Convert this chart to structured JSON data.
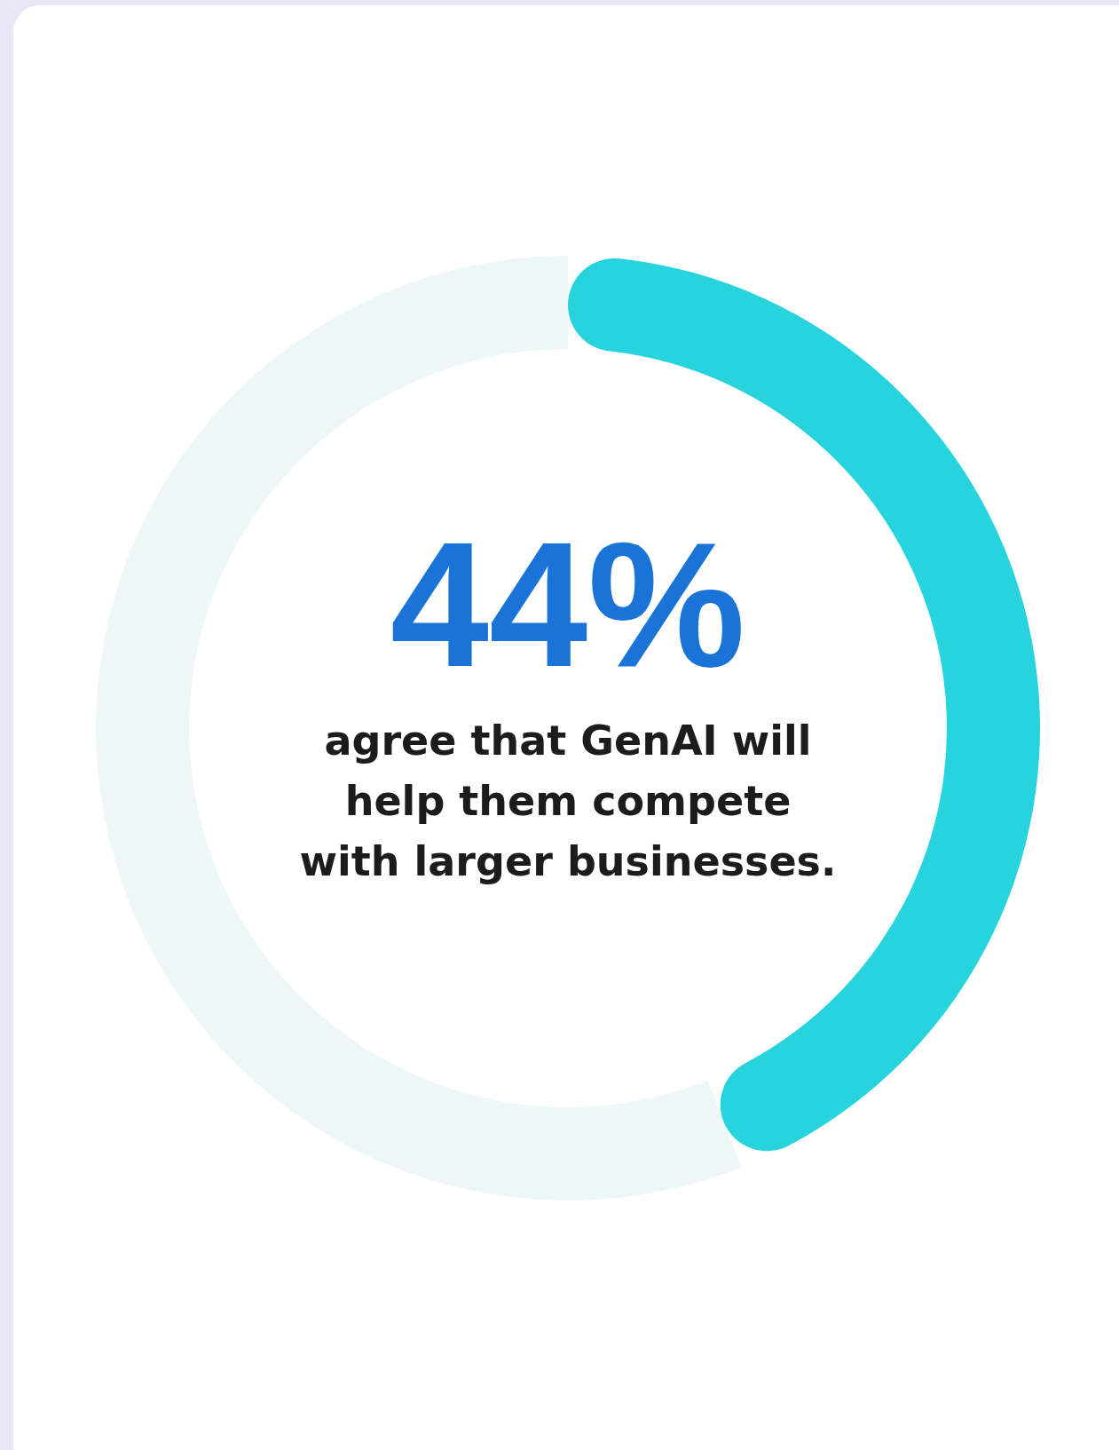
{
  "chart_data": {
    "type": "donut",
    "categories": [
      null,
      null
    ],
    "values": [
      44,
      56
    ],
    "colors": [
      "#27d3dc",
      "#eef7f8"
    ],
    "value_labels": [
      "44%",
      null
    ],
    "annotations": [
      "agree that GenAI will help them compete with larger businesses."
    ]
  }
}
